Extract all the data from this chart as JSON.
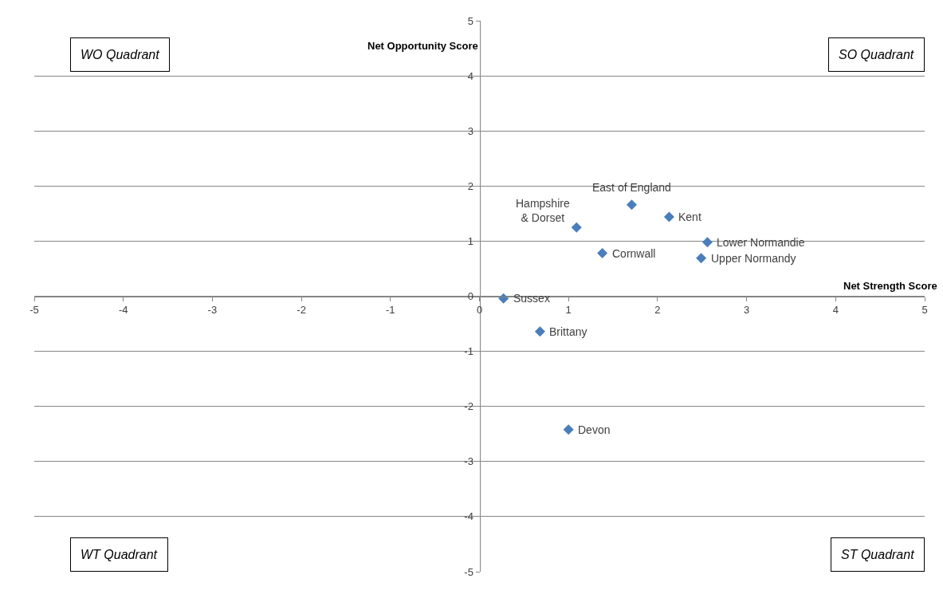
{
  "chart_data": {
    "type": "scatter",
    "xlabel": "Net Strength Score",
    "ylabel": "Net Opportunity Score",
    "x": [
      0.27,
      0.68,
      1.0,
      1.09,
      1.38,
      1.71,
      2.13,
      2.56,
      2.49
    ],
    "series": [
      {
        "color": "#4a7ebb",
        "values": [
          -0.04,
          -0.64,
          -2.42,
          1.25,
          0.78,
          1.66,
          1.44,
          0.98,
          0.69
        ]
      }
    ],
    "xlim": [
      -5,
      5
    ],
    "ylim": [
      -5,
      5
    ],
    "xticks": [
      -5,
      -4,
      -3,
      -2,
      -1,
      0,
      1,
      2,
      3,
      4,
      5
    ],
    "yticks": [
      -5,
      -4,
      -3,
      -2,
      -1,
      0,
      1,
      2,
      3,
      4,
      5
    ],
    "grid": "y",
    "marker": "diamond",
    "annotations": [
      {
        "text": "Sussex",
        "x": 0.27,
        "y": -0.04
      },
      {
        "text": "Brittany",
        "x": 0.68,
        "y": -0.64
      },
      {
        "text": "Devon",
        "x": 1.0,
        "y": -2.42
      },
      {
        "text": "Hampshire\n& Dorset",
        "x": 1.09,
        "y": 1.25
      },
      {
        "text": "Cornwall",
        "x": 1.38,
        "y": 0.78
      },
      {
        "text": "East of England",
        "x": 1.71,
        "y": 1.66
      },
      {
        "text": "Kent",
        "x": 2.13,
        "y": 1.44
      },
      {
        "text": "Lower Normandie",
        "x": 2.56,
        "y": 0.98
      },
      {
        "text": "Upper Normandy",
        "x": 2.49,
        "y": 0.69
      },
      "WO Quadrant",
      "SO Quadrant",
      "WT Quadrant",
      "ST Quadrant"
    ]
  }
}
